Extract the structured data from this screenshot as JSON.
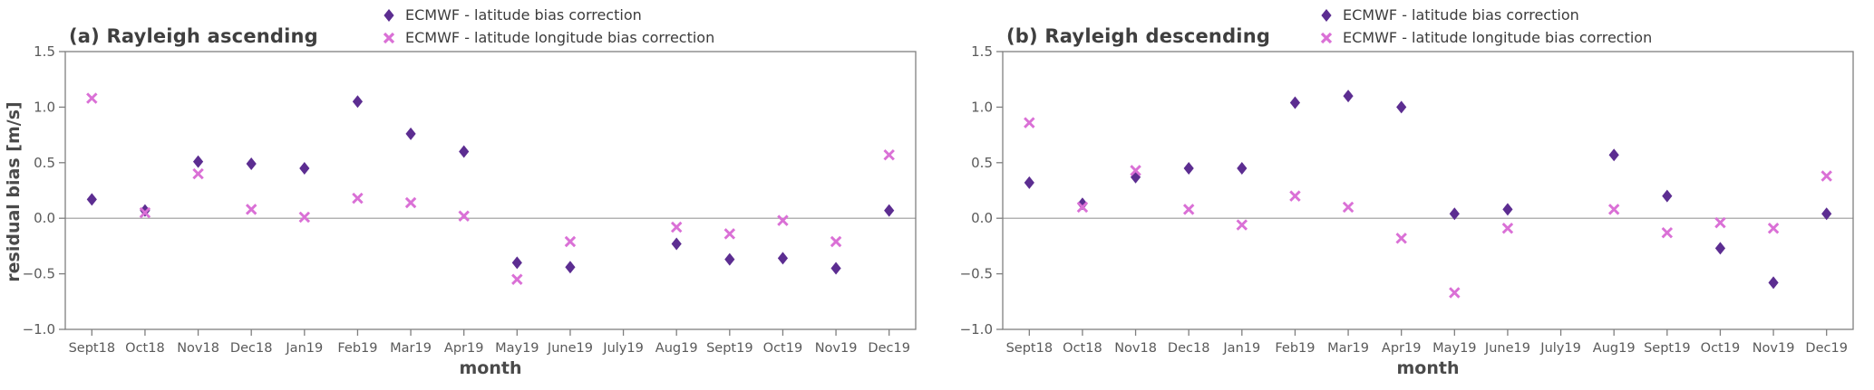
{
  "chart_data": [
    {
      "type": "scatter",
      "title": "(a) Rayleigh ascending",
      "xlabel": "month",
      "ylabel": "residual bias [m/s]",
      "ylim": [
        -1.0,
        1.5
      ],
      "yticks": [
        1.5,
        1.0,
        0.5,
        0.0,
        -0.5,
        -1.0
      ],
      "ytick_labels": [
        "1.5",
        "1.0",
        "0.5",
        "0.0",
        "−0.5",
        "−1.0"
      ],
      "categories": [
        "Sept18",
        "Oct18",
        "Nov18",
        "Dec18",
        "Jan19",
        "Feb19",
        "Mar19",
        "Apr19",
        "May19",
        "June19",
        "July19",
        "Aug19",
        "Sept19",
        "Oct19",
        "Nov19",
        "Dec19"
      ],
      "grid": "zero-line-only",
      "legend_position": "above-right",
      "series": [
        {
          "name": "ECMWF - latitude bias correction",
          "marker": "diamond",
          "color": "#5c2d91",
          "values": [
            0.17,
            0.07,
            0.51,
            0.49,
            0.45,
            1.05,
            0.76,
            0.6,
            -0.4,
            -0.44,
            null,
            -0.23,
            -0.37,
            -0.36,
            -0.45,
            0.07
          ]
        },
        {
          "name": "ECMWF - latitude longitude bias correction",
          "marker": "x",
          "color": "#DA70D6",
          "values": [
            1.08,
            0.05,
            0.4,
            0.08,
            0.01,
            0.18,
            0.14,
            0.02,
            -0.55,
            -0.21,
            null,
            -0.08,
            -0.14,
            -0.02,
            -0.21,
            0.57
          ]
        }
      ]
    },
    {
      "type": "scatter",
      "title": "(b) Rayleigh descending",
      "xlabel": "month",
      "ylabel": "",
      "ylim": [
        -1.0,
        1.5
      ],
      "yticks": [
        1.5,
        1.0,
        0.5,
        0.0,
        -0.5,
        -1.0
      ],
      "ytick_labels": [
        "1.5",
        "1.0",
        "0.5",
        "0.0",
        "−0.5",
        "−1.0"
      ],
      "categories": [
        "Sept18",
        "Oct18",
        "Nov18",
        "Dec18",
        "Jan19",
        "Feb19",
        "Mar19",
        "Apr19",
        "May19",
        "June19",
        "July19",
        "Aug19",
        "Sept19",
        "Oct19",
        "Nov19",
        "Dec19"
      ],
      "grid": "zero-line-only",
      "legend_position": "above-right",
      "series": [
        {
          "name": "ECMWF - latitude bias correction",
          "marker": "diamond",
          "color": "#5c2d91",
          "values": [
            0.32,
            0.13,
            0.37,
            0.45,
            0.45,
            1.04,
            1.1,
            1.0,
            0.04,
            0.08,
            null,
            0.57,
            0.2,
            -0.27,
            -0.58,
            0.04
          ]
        },
        {
          "name": "ECMWF - latitude longitude bias correction",
          "marker": "x",
          "color": "#DA70D6",
          "values": [
            0.86,
            0.1,
            0.43,
            0.08,
            -0.06,
            0.2,
            0.1,
            -0.18,
            -0.67,
            -0.09,
            null,
            0.08,
            -0.13,
            -0.04,
            -0.09,
            0.38
          ]
        }
      ]
    }
  ]
}
